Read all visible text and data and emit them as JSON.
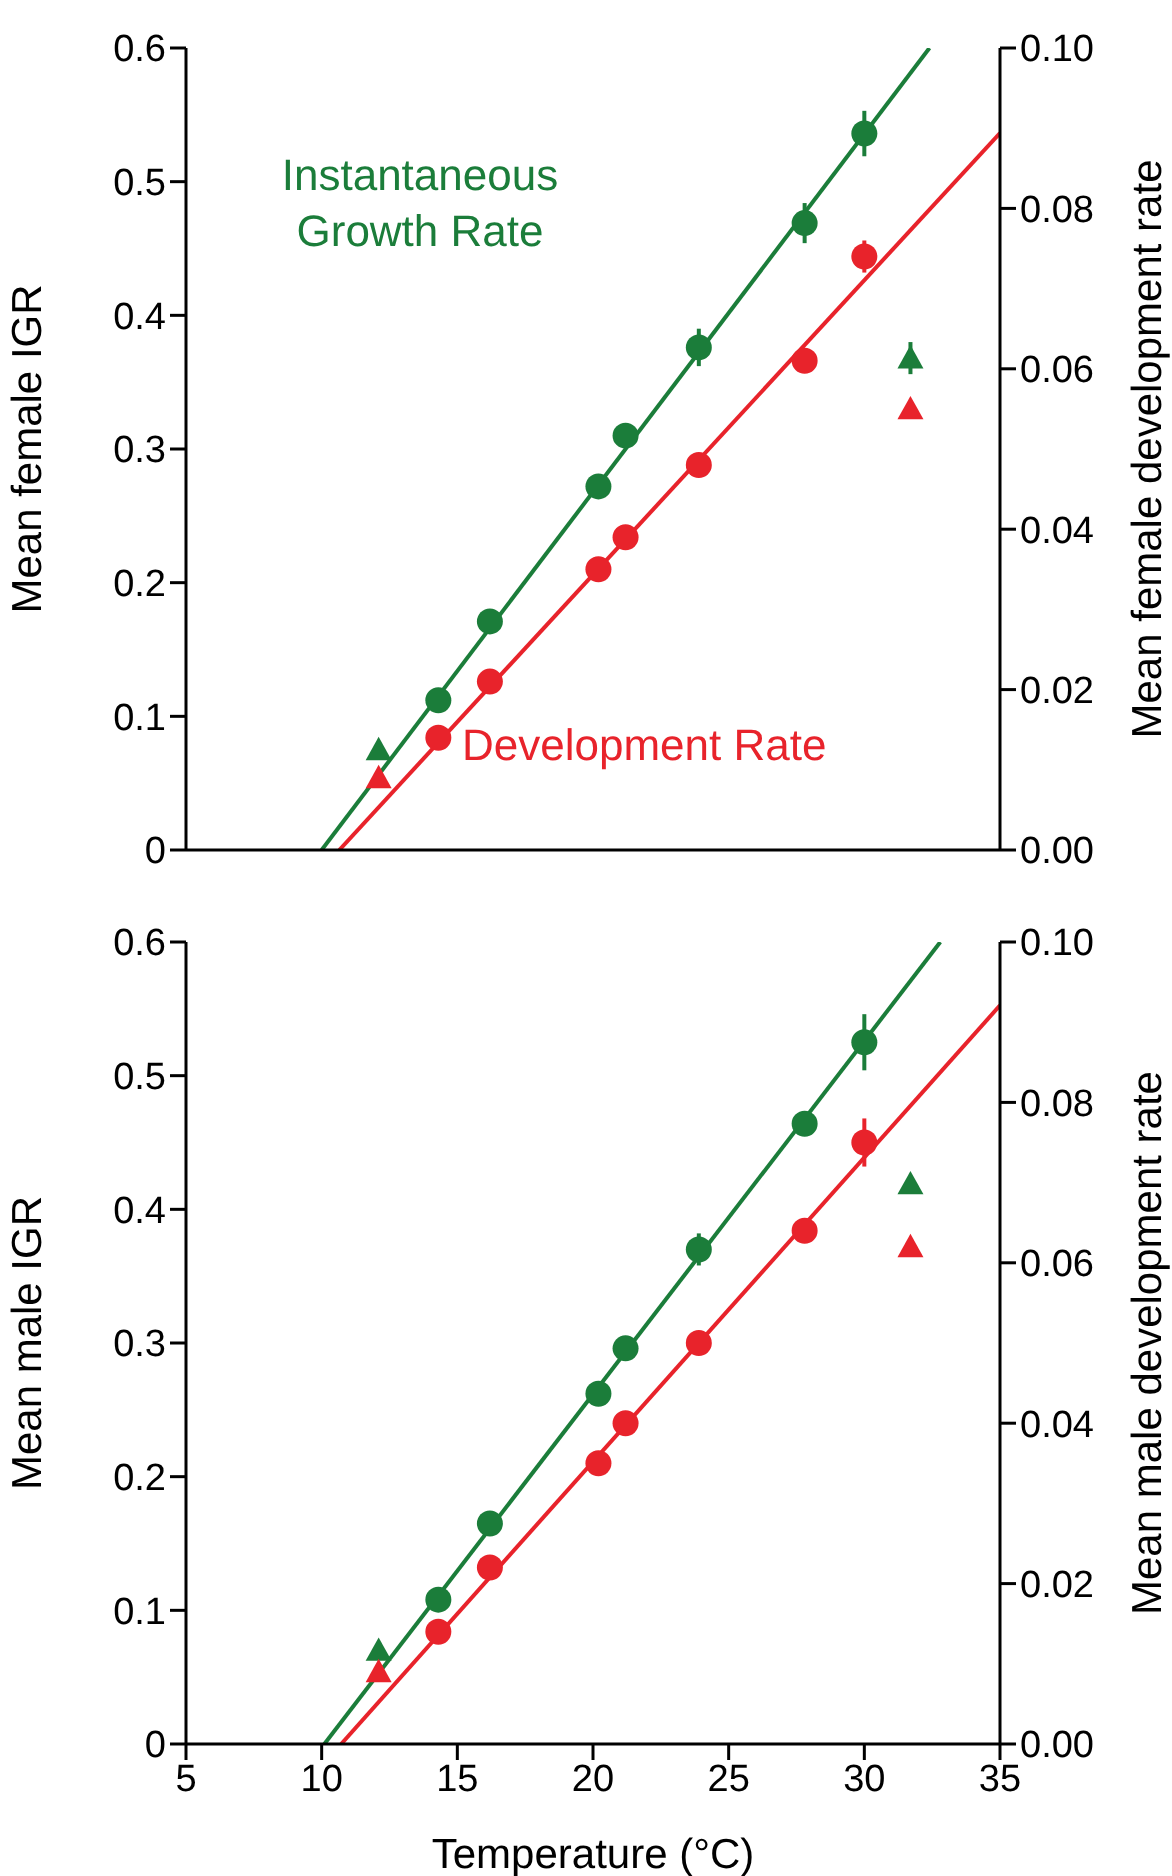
{
  "chart_data": [
    {
      "type": "scatter",
      "ylabel": "Mean female IGR",
      "y2label": "Mean female development rate",
      "xlim": [
        5,
        35
      ],
      "xticks": [
        5,
        10,
        15,
        20,
        25,
        30,
        35
      ],
      "ylim": [
        0,
        0.6
      ],
      "yticks": [
        0,
        0.1,
        0.2,
        0.3,
        0.4,
        0.5,
        0.6
      ],
      "y2lim": [
        0,
        0.1
      ],
      "y2ticks": [
        {
          "value": 0,
          "label": "0.00"
        },
        {
          "value": 0.02,
          "label": "0.02"
        },
        {
          "value": 0.04,
          "label": "0.04"
        },
        {
          "value": 0.06,
          "label": "0.06"
        },
        {
          "value": 0.08,
          "label": "0.08"
        },
        {
          "value": 0.1,
          "label": "0.10"
        }
      ],
      "tick_labels": "y",
      "grid": false,
      "legend": false,
      "series": [
        {
          "name": "Instantaneous Growth Rate",
          "type": "scatter",
          "marker": "circle",
          "color": "#1b7d3a",
          "x": [
            14.3,
            16.2,
            20.2,
            21.2,
            23.9,
            27.8,
            30.0
          ],
          "values": [
            0.112,
            0.171,
            0.272,
            0.31,
            0.376,
            0.469,
            0.536
          ],
          "errors": [
            null,
            null,
            null,
            0.008,
            0.014,
            0.015,
            0.017
          ]
        },
        {
          "type": "scatter",
          "marker": "triangle",
          "color": "#1b7d3a",
          "x": [
            12.1,
            31.7
          ],
          "values": [
            0.075,
            0.368
          ],
          "errors": [
            null,
            0.012
          ]
        },
        {
          "type": "line",
          "marker": "none",
          "color": "#1b7d3a",
          "x": [
            10.0,
            32.4
          ],
          "values": [
            0,
            0.6
          ]
        },
        {
          "name": "Development Rate",
          "type": "scatter",
          "axis": "y2",
          "marker": "circle",
          "color": "#e8232b",
          "x": [
            14.3,
            16.2,
            20.2,
            21.2,
            23.9,
            27.8,
            30.0
          ],
          "values": [
            0.014,
            0.021,
            0.035,
            0.039,
            0.048,
            0.061,
            0.074
          ],
          "errors": [
            null,
            null,
            null,
            null,
            null,
            null,
            0.002
          ]
        },
        {
          "type": "scatter",
          "axis": "y2",
          "marker": "triangle",
          "color": "#e8232b",
          "x": [
            12.1,
            31.7
          ],
          "values": [
            0.009,
            0.055
          ]
        },
        {
          "type": "line",
          "axis": "y2",
          "marker": "none",
          "color": "#e8232b",
          "x": [
            10.65,
            35
          ],
          "values": [
            0,
            0.0894
          ]
        }
      ]
    },
    {
      "type": "scatter",
      "xlabel": "Temperature (°C)",
      "ylabel": "Mean male IGR",
      "y2label": "Mean male development rate",
      "xlim": [
        5,
        35
      ],
      "xticks": [
        5,
        10,
        15,
        20,
        25,
        30,
        35
      ],
      "ylim": [
        0,
        0.6
      ],
      "yticks": [
        0,
        0.1,
        0.2,
        0.3,
        0.4,
        0.5,
        0.6
      ],
      "y2lim": [
        0,
        0.1
      ],
      "y2ticks": [
        {
          "value": 0,
          "label": "0.00"
        },
        {
          "value": 0.02,
          "label": "0.02"
        },
        {
          "value": 0.04,
          "label": "0.04"
        },
        {
          "value": 0.06,
          "label": "0.06"
        },
        {
          "value": 0.08,
          "label": "0.08"
        },
        {
          "value": 0.1,
          "label": "0.10"
        }
      ],
      "grid": false,
      "legend": false,
      "series": [
        {
          "type": "scatter",
          "marker": "circle",
          "color": "#1b7d3a",
          "x": [
            14.3,
            16.2,
            20.2,
            21.2,
            23.9,
            27.8,
            30.0
          ],
          "values": [
            0.108,
            0.165,
            0.262,
            0.296,
            0.37,
            0.464,
            0.525
          ],
          "errors": [
            null,
            null,
            null,
            0.006,
            0.012,
            null,
            0.021
          ]
        },
        {
          "type": "scatter",
          "marker": "triangle",
          "color": "#1b7d3a",
          "x": [
            12.1,
            31.7
          ],
          "values": [
            0.07,
            0.419
          ]
        },
        {
          "type": "line",
          "marker": "none",
          "color": "#1b7d3a",
          "x": [
            10.1,
            32.8
          ],
          "values": [
            0,
            0.6
          ]
        },
        {
          "type": "scatter",
          "axis": "y2",
          "marker": "circle",
          "color": "#e8232b",
          "x": [
            14.3,
            16.2,
            20.2,
            21.2,
            23.9,
            27.8,
            30.0
          ],
          "values": [
            0.014,
            0.022,
            0.035,
            0.04,
            0.05,
            0.064,
            0.075
          ],
          "errors": [
            null,
            null,
            null,
            null,
            null,
            null,
            0.003
          ]
        },
        {
          "type": "scatter",
          "axis": "y2",
          "marker": "triangle",
          "color": "#e8232b",
          "x": [
            12.1,
            31.7
          ],
          "values": [
            0.009,
            0.062
          ]
        },
        {
          "type": "line",
          "axis": "y2",
          "marker": "none",
          "color": "#e8232b",
          "x": [
            10.72,
            35
          ],
          "values": [
            0,
            0.0921
          ]
        }
      ]
    }
  ]
}
